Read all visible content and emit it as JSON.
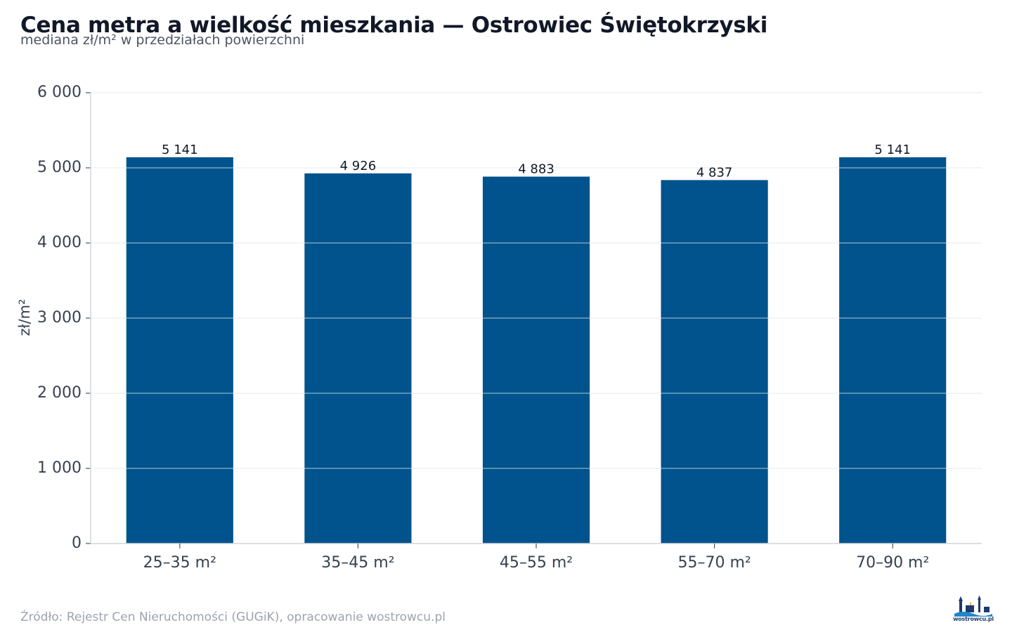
{
  "header": {
    "title": "Cena metra a wielkość mieszkania — Ostrowiec Świętokrzyski",
    "subtitle": "mediana zł/m² w przedziałach powierzchni"
  },
  "footer": {
    "source": "Źródło: Rejestr Cen Nieruchomości (GUGiK), opracowanie wostrowcu.pl",
    "logo_text": "wostrowcu.pl"
  },
  "colors": {
    "bar": "#00538c",
    "grid": "#e5e7eb",
    "axis": "#d1d5db"
  },
  "chart_data": {
    "type": "bar",
    "title": "Cena metra a wielkość mieszkania — Ostrowiec Świętokrzyski",
    "subtitle": "mediana zł/m² w przedziałach powierzchni",
    "xlabel": "",
    "ylabel": "zł/m²",
    "categories": [
      "25–35 m²",
      "35–45 m²",
      "45–55 m²",
      "55–70 m²",
      "70–90 m²"
    ],
    "values": [
      5141,
      4926,
      4883,
      4837,
      5141
    ],
    "value_labels": [
      "5 141",
      "4 926",
      "4 883",
      "4 837",
      "5 141"
    ],
    "ylim": [
      0,
      6000
    ],
    "yticks": [
      0,
      1000,
      2000,
      3000,
      4000,
      5000,
      6000
    ],
    "ytick_labels": [
      "0",
      "1 000",
      "2 000",
      "3 000",
      "4 000",
      "5 000",
      "6 000"
    ],
    "grid": true,
    "legend": "none"
  }
}
